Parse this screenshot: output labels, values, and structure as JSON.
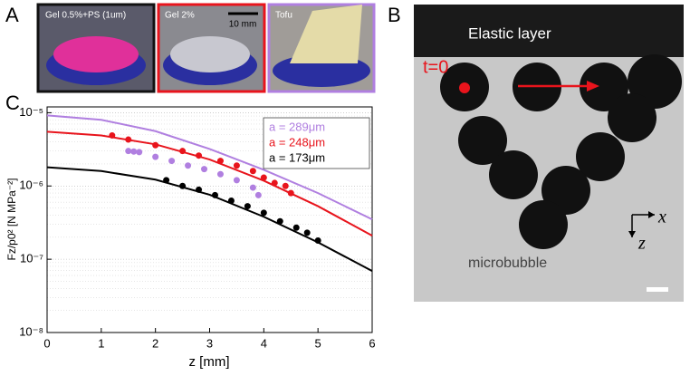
{
  "panels": {
    "a": {
      "label": "A",
      "photos": [
        "Gel 0.5%+PS (1um)",
        "Gel 2%",
        "Tofu"
      ],
      "scale_bar": "10 mm"
    },
    "b": {
      "label": "B",
      "layer": "Elastic layer",
      "time": "t=0",
      "x_axis": "x",
      "z_axis": "z",
      "bubble": "microbubble"
    },
    "c": {
      "label": "C"
    }
  },
  "chart_data": {
    "type": "line",
    "log_y": true,
    "grid": true,
    "legend": "upper right",
    "xlabel": "z [mm]",
    "ylabel": "Fz/p0² [N MPa⁻²]",
    "xlim": [
      0,
      6
    ],
    "xticks": [
      0,
      1,
      2,
      3,
      4,
      5,
      6
    ],
    "ylim": [
      1e-08,
      1.2e-05
    ],
    "yticks": [
      {
        "value": 1e-08,
        "label": "10⁻⁸"
      },
      {
        "value": 1e-07,
        "label": "10⁻⁷"
      },
      {
        "value": 1e-06,
        "label": "10⁻⁶"
      },
      {
        "value": 1e-05,
        "label": "10⁻⁵"
      }
    ],
    "series": [
      {
        "name": "a = 289μm",
        "color": "#b07fe0",
        "x": [
          0,
          1,
          2,
          3,
          4,
          5,
          6
        ],
        "values": [
          9.2e-06,
          8e-06,
          5.6e-06,
          3.2e-06,
          1.66e-06,
          8e-07,
          3.5e-07
        ],
        "points_x": [
          1.5,
          1.6,
          1.7,
          2.0,
          2.3,
          2.6,
          2.9,
          3.2,
          3.5,
          3.8,
          3.9
        ],
        "points_values": [
          3e-06,
          2.95e-06,
          2.9e-06,
          2.5e-06,
          2.2e-06,
          1.9e-06,
          1.7e-06,
          1.45e-06,
          1.2e-06,
          9.5e-07,
          7.5e-07
        ]
      },
      {
        "name": "a = 248μm",
        "color": "#e8141c",
        "x": [
          0,
          1,
          2,
          3,
          4,
          5,
          6
        ],
        "values": [
          5.5e-06,
          4.9e-06,
          3.7e-06,
          2.3e-06,
          1.18e-06,
          5.3e-07,
          2.1e-07
        ],
        "points_x": [
          1.2,
          1.5,
          2.0,
          2.5,
          2.8,
          3.2,
          3.5,
          3.8,
          4.0,
          4.2,
          4.4,
          4.5
        ],
        "points_values": [
          4.9e-06,
          4.3e-06,
          3.6e-06,
          3e-06,
          2.6e-06,
          2.2e-06,
          1.9e-06,
          1.6e-06,
          1.3e-06,
          1.1e-06,
          1e-06,
          8e-07
        ]
      },
      {
        "name": "a = 173μm",
        "color": "#000000",
        "x": [
          0,
          1,
          2,
          3,
          4,
          5,
          6
        ],
        "values": [
          1.8e-06,
          1.6e-06,
          1.22e-06,
          7.6e-07,
          3.8e-07,
          1.7e-07,
          6.9e-08
        ],
        "points_x": [
          2.2,
          2.5,
          2.8,
          3.1,
          3.4,
          3.7,
          4.0,
          4.3,
          4.6,
          4.8,
          5.0
        ],
        "points_values": [
          1.2e-06,
          1e-06,
          8.9e-07,
          7.5e-07,
          6.3e-07,
          5.3e-07,
          4.3e-07,
          3.3e-07,
          2.7e-07,
          2.3e-07,
          1.8e-07
        ]
      }
    ]
  }
}
